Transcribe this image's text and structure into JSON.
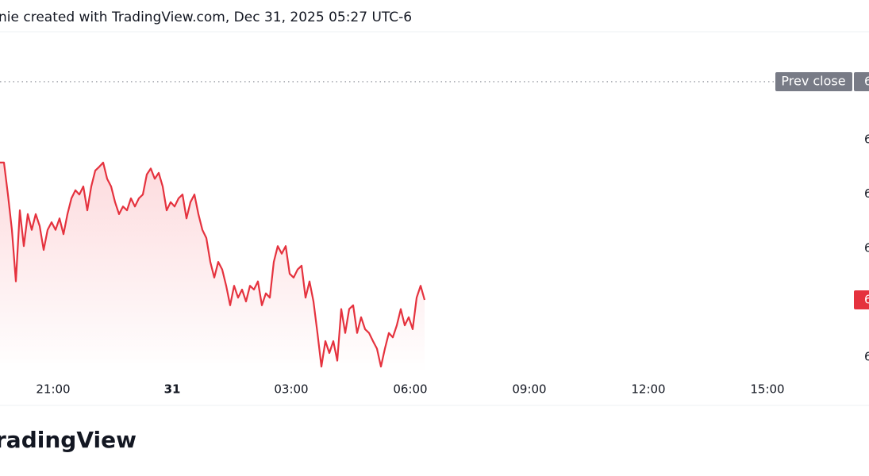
{
  "chart_data": {
    "type": "line",
    "title": "nie created with TradingView.com, Dec 31, 2025 05:27 UTC-6",
    "footer": "radingView",
    "x": [
      -4.34,
      -4.24,
      -4.14,
      -4.04,
      -3.94,
      -3.84,
      -3.74,
      -3.64,
      -3.54,
      -3.44,
      -3.34,
      -3.24,
      -3.14,
      -3.04,
      -2.94,
      -2.84,
      -2.74,
      -2.64,
      -2.54,
      -2.44,
      -2.34,
      -2.24,
      -2.14,
      -2.04,
      -1.94,
      -1.84,
      -1.74,
      -1.64,
      -1.54,
      -1.44,
      -1.34,
      -1.24,
      -1.14,
      -1.04,
      -0.94,
      -0.84,
      -0.74,
      -0.64,
      -0.54,
      -0.44,
      -0.34,
      -0.24,
      -0.14,
      -0.04,
      0.06,
      0.16,
      0.26,
      0.36,
      0.46,
      0.56,
      0.66,
      0.76,
      0.86,
      0.96,
      1.06,
      1.16,
      1.26,
      1.36,
      1.46,
      1.56,
      1.66,
      1.76,
      1.86,
      1.96,
      2.06,
      2.16,
      2.26,
      2.36,
      2.46,
      2.56,
      2.66,
      2.76,
      2.86,
      2.96,
      3.06,
      3.16,
      3.26,
      3.36,
      3.46,
      3.56,
      3.66,
      3.76,
      3.86,
      3.96,
      4.06,
      4.16,
      4.26,
      4.36,
      4.46,
      4.56,
      4.66,
      4.76,
      4.86,
      4.96,
      5.06,
      5.16,
      5.26,
      5.36,
      5.46,
      5.56,
      5.66,
      5.76,
      5.86,
      5.96,
      6.06,
      6.16,
      6.26,
      6.36
    ],
    "series": [
      {
        "color": "#e5323e",
        "values": [
          3.58,
          3.58,
          2.99,
          2.34,
          1.39,
          2.7,
          2.04,
          2.63,
          2.34,
          2.63,
          2.41,
          1.97,
          2.34,
          2.48,
          2.34,
          2.55,
          2.26,
          2.63,
          2.92,
          3.07,
          2.99,
          3.14,
          2.7,
          3.14,
          3.43,
          3.5,
          3.58,
          3.28,
          3.14,
          2.85,
          2.63,
          2.77,
          2.7,
          2.92,
          2.77,
          2.92,
          2.99,
          3.36,
          3.47,
          3.28,
          3.39,
          3.14,
          2.7,
          2.85,
          2.77,
          2.92,
          2.99,
          2.55,
          2.85,
          2.99,
          2.63,
          2.34,
          2.19,
          1.75,
          1.46,
          1.75,
          1.61,
          1.31,
          0.95,
          1.31,
          1.09,
          1.24,
          1.02,
          1.31,
          1.24,
          1.39,
          0.95,
          1.17,
          1.09,
          1.75,
          2.04,
          1.9,
          2.04,
          1.53,
          1.46,
          1.61,
          1.68,
          1.09,
          1.39,
          1.02,
          0.44,
          -0.18,
          0.29,
          0.07,
          0.29,
          -0.07,
          0.88,
          0.44,
          0.88,
          0.95,
          0.44,
          0.73,
          0.51,
          0.44,
          0.29,
          0.15,
          -0.18,
          0.15,
          0.44,
          0.36,
          0.58,
          0.88,
          0.58,
          0.73,
          0.51,
          1.09,
          1.31,
          1.05
        ]
      }
    ],
    "xlim": [
      -4.34,
      16.96
    ],
    "xticks": [
      {
        "value": -3,
        "label": "21:00"
      },
      {
        "value": 0,
        "label": "31"
      },
      {
        "value": 3,
        "label": "03:00"
      },
      {
        "value": 6,
        "label": "06:00"
      },
      {
        "value": 9,
        "label": "09:00"
      },
      {
        "value": 12,
        "label": "12:00"
      },
      {
        "value": 15,
        "label": "15:00"
      }
    ],
    "ylim": [
      -0.88,
      5.99
    ],
    "yticks": [
      {
        "value": 0,
        "label": "6"
      },
      {
        "value": 2,
        "label": "6"
      },
      {
        "value": 3,
        "label": "6"
      },
      {
        "value": 4,
        "label": "6"
      }
    ],
    "prev_close": {
      "value": 5.07,
      "label": "Prev close",
      "price_label": "6"
    },
    "last_price_label": "6"
  }
}
